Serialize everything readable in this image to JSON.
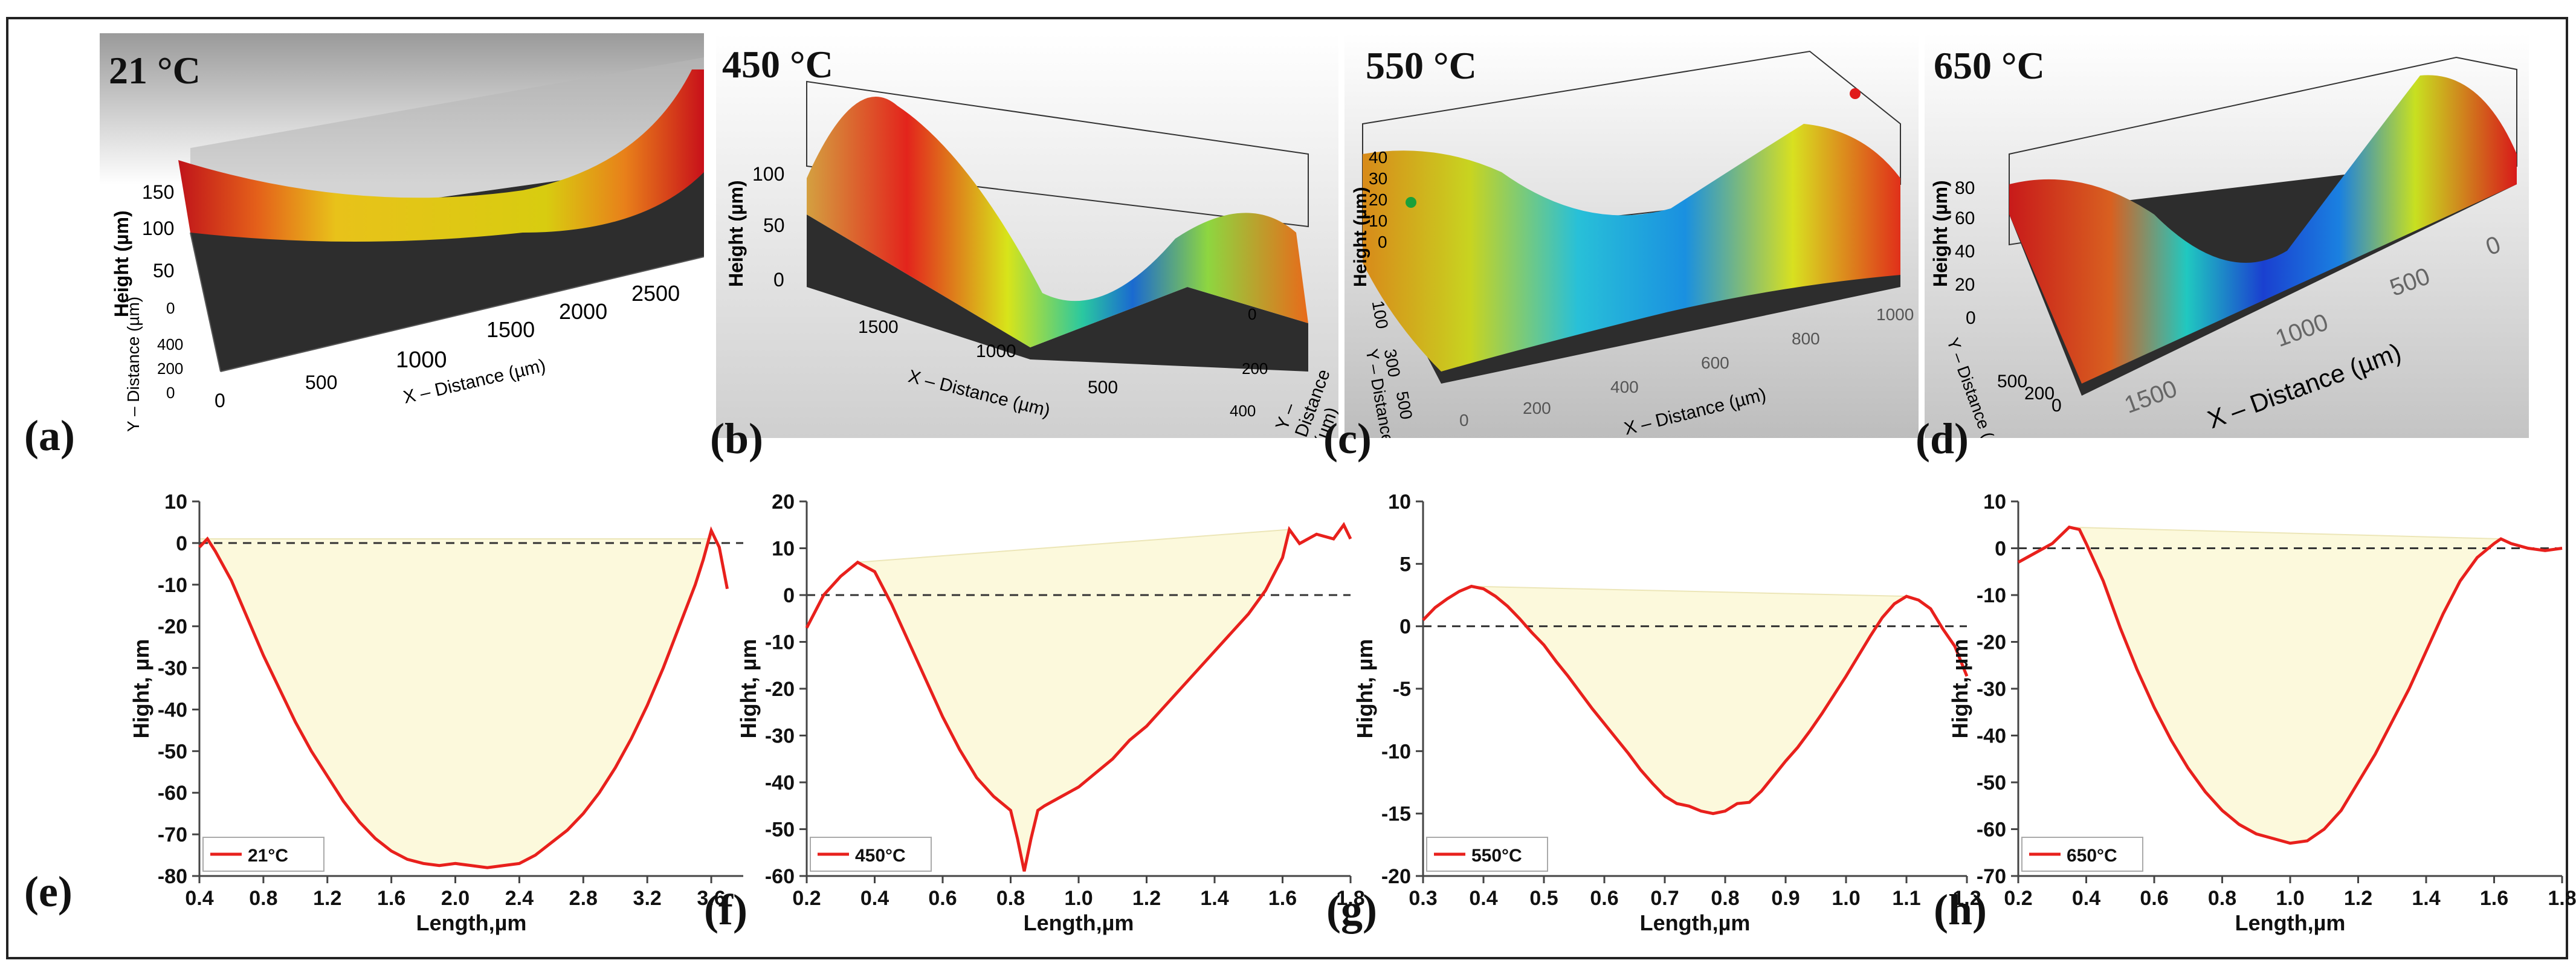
{
  "figure": {
    "top_panels": [
      {
        "id": "a",
        "panel_label": "(a)",
        "temperature": "21 °C",
        "z_axis_label": "Height (µm)",
        "x_axis_label": "X – Distance (µm)",
        "y_axis_label": "Y – Distance (µm)",
        "x_ticks": [
          "0",
          "500",
          "1000",
          "1500",
          "2000",
          "2500"
        ],
        "z_ticks": [
          "150",
          "100",
          "50",
          "0"
        ],
        "y_ticks": [
          "400",
          "200",
          "0"
        ]
      },
      {
        "id": "b",
        "panel_label": "(b)",
        "temperature": "450 °C",
        "z_axis_label": "Height (µm)",
        "x_axis_label": "X – Distance (µm)",
        "y_axis_label": "Y – Distance (µm)",
        "x_ticks": [
          "1500",
          "1000",
          "500"
        ],
        "z_ticks": [
          "100",
          "50",
          "0"
        ],
        "y_ticks": [
          "0",
          "200",
          "400"
        ]
      },
      {
        "id": "c",
        "panel_label": "(c)",
        "temperature": "550 °C",
        "z_axis_label": "Height (µm)",
        "x_axis_label": "X – Distance (µm)",
        "y_axis_label": "Y – Distance (µm)",
        "x_ticks": [
          "0",
          "200",
          "400",
          "600",
          "800",
          "1000"
        ],
        "z_ticks": [
          "40",
          "30",
          "20",
          "10",
          "0"
        ],
        "y_ticks": [
          "100",
          "300",
          "500"
        ]
      },
      {
        "id": "d",
        "panel_label": "(d)",
        "temperature": "650 °C",
        "z_axis_label": "Height (µm)",
        "x_axis_label": "X – Distance (µm)",
        "y_axis_label": "Y – Distance (µm)",
        "x_ticks": [
          "1500",
          "1000",
          "500",
          "0"
        ],
        "z_ticks": [
          "80",
          "60",
          "40",
          "20",
          "0"
        ],
        "y_ticks": [
          "500",
          "200",
          "0"
        ]
      }
    ]
  },
  "chart_data": [
    {
      "id": "e",
      "panel_label": "(e)",
      "type": "area",
      "xlabel": "Length,µm",
      "ylabel": "Hight, µm",
      "legend": "21°C",
      "xlim": [
        0.4,
        3.8
      ],
      "ylim": [
        -80,
        10
      ],
      "xticks": [
        0.4,
        0.8,
        1.2,
        1.6,
        2.0,
        2.4,
        2.8,
        3.2,
        3.6
      ],
      "xtick_labels": [
        "0.4",
        "0.8",
        "1.2",
        "1.6",
        "2.0",
        "2.4",
        "2.8",
        "3.2",
        "3.6"
      ],
      "yticks": [
        10,
        0,
        -10,
        -20,
        -30,
        -40,
        -50,
        -60,
        -70,
        -80
      ],
      "ytick_labels": [
        "10",
        "0",
        "-10",
        "-20",
        "-30",
        "-40",
        "-50",
        "-60",
        "-70",
        "-80"
      ],
      "x": [
        0.4,
        0.45,
        0.5,
        0.6,
        0.7,
        0.8,
        0.9,
        1.0,
        1.1,
        1.2,
        1.3,
        1.4,
        1.5,
        1.6,
        1.7,
        1.8,
        1.9,
        2.0,
        2.1,
        2.2,
        2.3,
        2.4,
        2.5,
        2.6,
        2.7,
        2.8,
        2.9,
        3.0,
        3.1,
        3.2,
        3.3,
        3.4,
        3.5,
        3.55,
        3.6,
        3.65,
        3.7
      ],
      "y": [
        -1,
        1,
        -2,
        -9,
        -18,
        -27,
        -35,
        -43,
        -50,
        -56,
        -62,
        -67,
        -71,
        -74,
        -76,
        -77,
        -77.5,
        -77,
        -77.5,
        -78,
        -77.5,
        -77,
        -75,
        -72,
        -69,
        -65,
        -60,
        -54,
        -47,
        -39,
        -30,
        -20,
        -10,
        -4,
        3,
        -1,
        -11
      ],
      "fill_top": [
        [
          0.4,
          1
        ],
        [
          3.6,
          1
        ]
      ]
    },
    {
      "id": "f",
      "panel_label": "(f)",
      "type": "area",
      "xlabel": "Length,µm",
      "ylabel": "Hight, µm",
      "legend": "450°C",
      "xlim": [
        0.2,
        1.8
      ],
      "ylim": [
        -60,
        20
      ],
      "xticks": [
        0.2,
        0.4,
        0.6,
        0.8,
        1.0,
        1.2,
        1.4,
        1.6,
        1.8
      ],
      "xtick_labels": [
        "0.2",
        "0.4",
        "0.6",
        "0.8",
        "1.0",
        "1.2",
        "1.4",
        "1.6",
        "1.8"
      ],
      "yticks": [
        20,
        10,
        0,
        -10,
        -20,
        -30,
        -40,
        -50,
        -60
      ],
      "ytick_labels": [
        "20",
        "10",
        "0",
        "-10",
        "-20",
        "-30",
        "-40",
        "-50",
        "-60"
      ],
      "x": [
        0.2,
        0.25,
        0.3,
        0.35,
        0.4,
        0.45,
        0.5,
        0.55,
        0.6,
        0.65,
        0.7,
        0.75,
        0.8,
        0.82,
        0.84,
        0.86,
        0.88,
        0.9,
        0.95,
        1.0,
        1.05,
        1.1,
        1.15,
        1.2,
        1.25,
        1.3,
        1.35,
        1.4,
        1.45,
        1.5,
        1.55,
        1.6,
        1.62,
        1.65,
        1.7,
        1.75,
        1.78,
        1.8
      ],
      "y": [
        -7,
        0,
        4,
        7,
        5,
        -2,
        -10,
        -18,
        -26,
        -33,
        -39,
        -43,
        -46,
        -52,
        -59,
        -52,
        -46,
        -45,
        -43,
        -41,
        -38,
        -35,
        -31,
        -28,
        -24,
        -20,
        -16,
        -12,
        -8,
        -4,
        1,
        8,
        14,
        11,
        13,
        12,
        15,
        12
      ],
      "fill_top": [
        [
          0.35,
          7
        ],
        [
          1.62,
          14
        ]
      ]
    },
    {
      "id": "g",
      "panel_label": "(g)",
      "type": "area",
      "xlabel": "Length,µm",
      "ylabel": "Hight, µm",
      "legend": "550°C",
      "xlim": [
        0.3,
        1.2
      ],
      "ylim": [
        -20,
        10
      ],
      "xticks": [
        0.3,
        0.4,
        0.5,
        0.6,
        0.7,
        0.8,
        0.9,
        1.0,
        1.1,
        1.2
      ],
      "xtick_labels": [
        "0.3",
        "0.4",
        "0.5",
        "0.6",
        "0.7",
        "0.8",
        "0.9",
        "1.0",
        "1.1",
        "1.2"
      ],
      "yticks": [
        10,
        5,
        0,
        -5,
        -10,
        -15,
        -20
      ],
      "ytick_labels": [
        "10",
        "5",
        "0",
        "-5",
        "-10",
        "-15",
        "-20"
      ],
      "x": [
        0.3,
        0.32,
        0.34,
        0.36,
        0.38,
        0.4,
        0.42,
        0.44,
        0.46,
        0.48,
        0.5,
        0.52,
        0.54,
        0.56,
        0.58,
        0.6,
        0.62,
        0.64,
        0.66,
        0.68,
        0.7,
        0.72,
        0.74,
        0.76,
        0.78,
        0.8,
        0.82,
        0.84,
        0.86,
        0.88,
        0.9,
        0.92,
        0.94,
        0.96,
        0.98,
        1.0,
        1.02,
        1.04,
        1.06,
        1.08,
        1.1,
        1.12,
        1.14,
        1.16,
        1.18,
        1.2
      ],
      "y": [
        0.5,
        1.5,
        2.2,
        2.8,
        3.2,
        3.0,
        2.4,
        1.6,
        0.6,
        -0.5,
        -1.5,
        -2.8,
        -4.0,
        -5.3,
        -6.6,
        -7.8,
        -9.0,
        -10.2,
        -11.5,
        -12.6,
        -13.6,
        -14.2,
        -14.4,
        -14.8,
        -15.0,
        -14.8,
        -14.2,
        -14.1,
        -13.2,
        -12.0,
        -10.8,
        -9.7,
        -8.4,
        -7.0,
        -5.5,
        -4.0,
        -2.4,
        -0.8,
        0.7,
        1.8,
        2.4,
        2.1,
        1.4,
        -0.2,
        -1.6,
        -4.0
      ],
      "fill_top": [
        [
          0.38,
          3.2
        ],
        [
          1.1,
          2.4
        ]
      ]
    },
    {
      "id": "h",
      "panel_label": "(h)",
      "type": "area",
      "xlabel": "Length,µm",
      "ylabel": "Hight, µm",
      "legend": "650°C",
      "xlim": [
        0.2,
        1.8
      ],
      "ylim": [
        -70,
        10
      ],
      "xticks": [
        0.2,
        0.4,
        0.6,
        0.8,
        1.0,
        1.2,
        1.4,
        1.6,
        1.8
      ],
      "xtick_labels": [
        "0.2",
        "0.4",
        "0.6",
        "0.8",
        "1.0",
        "1.2",
        "1.4",
        "1.6",
        "1.8"
      ],
      "yticks": [
        10,
        0,
        -10,
        -20,
        -30,
        -40,
        -50,
        -60,
        -70
      ],
      "ytick_labels": [
        "10",
        "0",
        "-10",
        "-20",
        "-30",
        "-40",
        "-50",
        "-60",
        "-70"
      ],
      "x": [
        0.2,
        0.25,
        0.3,
        0.35,
        0.38,
        0.4,
        0.45,
        0.5,
        0.55,
        0.6,
        0.65,
        0.7,
        0.75,
        0.8,
        0.85,
        0.9,
        0.95,
        1.0,
        1.05,
        1.1,
        1.15,
        1.2,
        1.25,
        1.3,
        1.35,
        1.4,
        1.45,
        1.5,
        1.55,
        1.6,
        1.62,
        1.65,
        1.7,
        1.75,
        1.8
      ],
      "y": [
        -3,
        -1,
        1,
        4.5,
        4,
        1,
        -7,
        -17,
        -26,
        -34,
        -41,
        -47,
        -52,
        -56,
        -59,
        -61,
        -62,
        -63,
        -62.5,
        -60,
        -56,
        -50,
        -44,
        -37,
        -30,
        -22,
        -14,
        -7,
        -2,
        1,
        2,
        1,
        0,
        -0.5,
        0
      ],
      "fill_top": [
        [
          0.35,
          4.5
        ],
        [
          1.62,
          2
        ]
      ]
    }
  ],
  "colors": {
    "curve": "#e8201c",
    "fill": "#fcf9dc",
    "fill_edge": "#ece6b8",
    "axis": "#444444",
    "dashed": "#333333",
    "surface_base": "#2d2d2d"
  }
}
